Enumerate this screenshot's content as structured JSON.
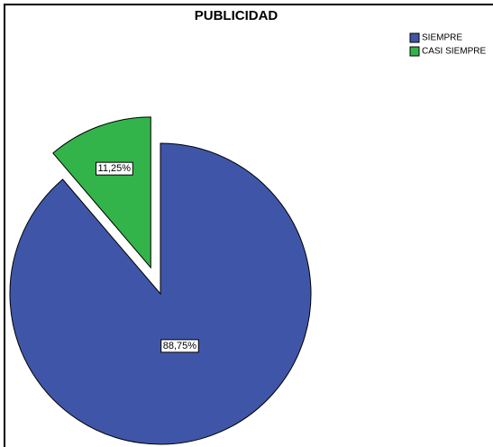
{
  "chart_data": {
    "type": "pie",
    "title": "PUBLICIDAD",
    "categories": [
      "SIEMPRE",
      "CASI SIEMPRE"
    ],
    "values": [
      88.75,
      11.25
    ],
    "value_labels": [
      "88,75%",
      "11,25%"
    ],
    "colors": [
      "#3f56a8",
      "#33b44a"
    ],
    "explode": [
      false,
      true
    ],
    "legend": "top-right"
  }
}
